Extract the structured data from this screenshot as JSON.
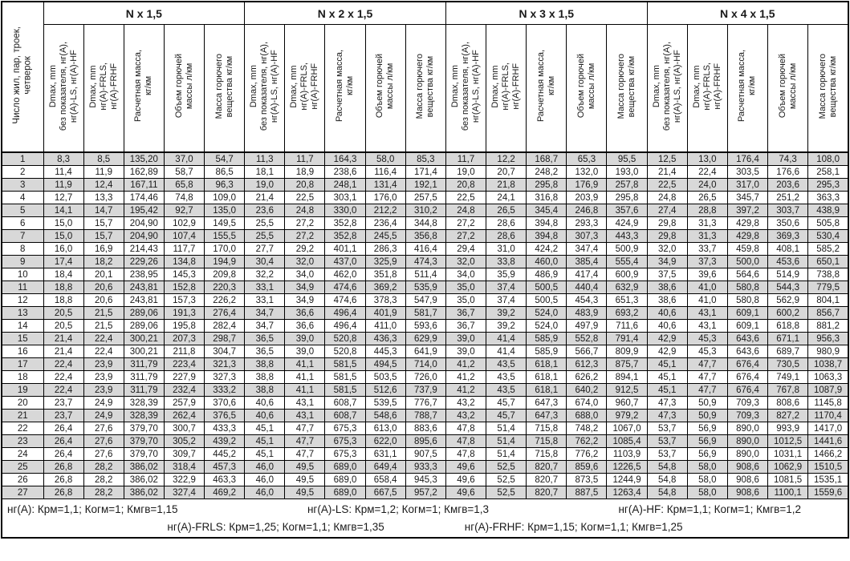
{
  "table": {
    "first_column_header": "Число жил, пар, троек,\nчетверок",
    "groups": [
      "N x 1,5",
      "N x 2 x 1,5",
      "N x 3 x 1,5",
      "N x 4 x 1,5"
    ],
    "sub_headers": [
      "Dmax, mm\nбез показателя, нг(A),\nнг(A)-LS, нг(A)-HF",
      "Dmax, mm\nнг(A)-FRLS,\nнг(A)-FRHF",
      "Расчетная масса,\nкг/км",
      "Объем горючей\nмассы л/км",
      "Масса горючего\nвещества кг/км"
    ],
    "rows": [
      [
        "1",
        "8,3",
        "8,5",
        "135,20",
        "37,0",
        "54,7",
        "11,3",
        "11,7",
        "164,3",
        "58,0",
        "85,3",
        "11,7",
        "12,2",
        "168,7",
        "65,3",
        "95,5",
        "12,5",
        "13,0",
        "176,4",
        "74,3",
        "108,0"
      ],
      [
        "2",
        "11,4",
        "11,9",
        "162,89",
        "58,7",
        "86,5",
        "18,1",
        "18,9",
        "238,6",
        "116,4",
        "171,4",
        "19,0",
        "20,7",
        "248,2",
        "132,0",
        "193,0",
        "21,4",
        "22,4",
        "303,5",
        "176,6",
        "258,1"
      ],
      [
        "3",
        "11,9",
        "12,4",
        "167,11",
        "65,8",
        "96,3",
        "19,0",
        "20,8",
        "248,1",
        "131,4",
        "192,1",
        "20,8",
        "21,8",
        "295,8",
        "176,9",
        "257,8",
        "22,5",
        "24,0",
        "317,0",
        "203,6",
        "295,3"
      ],
      [
        "4",
        "12,7",
        "13,3",
        "174,46",
        "74,8",
        "109,0",
        "21,4",
        "22,5",
        "303,1",
        "176,0",
        "257,5",
        "22,5",
        "24,1",
        "316,8",
        "203,9",
        "295,8",
        "24,8",
        "26,5",
        "345,7",
        "251,2",
        "363,3"
      ],
      [
        "5",
        "14,1",
        "14,7",
        "195,42",
        "92,7",
        "135,0",
        "23,6",
        "24,8",
        "330,0",
        "212,2",
        "310,2",
        "24,8",
        "26,5",
        "345,4",
        "246,8",
        "357,6",
        "27,4",
        "28,8",
        "397,2",
        "303,7",
        "438,9"
      ],
      [
        "6",
        "15,0",
        "15,7",
        "204,90",
        "102,9",
        "149,5",
        "25,5",
        "27,2",
        "352,8",
        "236,4",
        "344,8",
        "27,2",
        "28,6",
        "394,8",
        "293,3",
        "424,9",
        "29,8",
        "31,3",
        "429,8",
        "350,6",
        "505,8"
      ],
      [
        "7",
        "15,0",
        "15,7",
        "204,90",
        "107,4",
        "155,5",
        "25,5",
        "27,2",
        "352,8",
        "245,5",
        "356,8",
        "27,2",
        "28,6",
        "394,8",
        "307,3",
        "443,3",
        "29,8",
        "31,3",
        "429,8",
        "369,3",
        "530,4"
      ],
      [
        "8",
        "16,0",
        "16,9",
        "214,43",
        "117,7",
        "170,0",
        "27,7",
        "29,2",
        "401,1",
        "286,3",
        "416,4",
        "29,4",
        "31,0",
        "424,2",
        "347,4",
        "500,9",
        "32,0",
        "33,7",
        "459,8",
        "408,1",
        "585,2"
      ],
      [
        "9",
        "17,4",
        "18,2",
        "229,26",
        "134,8",
        "194,9",
        "30,4",
        "32,0",
        "437,0",
        "325,9",
        "474,3",
        "32,0",
        "33,8",
        "460,0",
        "385,4",
        "555,4",
        "34,9",
        "37,3",
        "500,0",
        "453,6",
        "650,1"
      ],
      [
        "10",
        "18,4",
        "20,1",
        "238,95",
        "145,3",
        "209,8",
        "32,2",
        "34,0",
        "462,0",
        "351,8",
        "511,4",
        "34,0",
        "35,9",
        "486,9",
        "417,4",
        "600,9",
        "37,5",
        "39,6",
        "564,6",
        "514,9",
        "738,8"
      ],
      [
        "11",
        "18,8",
        "20,6",
        "243,81",
        "152,8",
        "220,3",
        "33,1",
        "34,9",
        "474,6",
        "369,2",
        "535,9",
        "35,0",
        "37,4",
        "500,5",
        "440,4",
        "632,9",
        "38,6",
        "41,0",
        "580,8",
        "544,3",
        "779,5"
      ],
      [
        "12",
        "18,8",
        "20,6",
        "243,81",
        "157,3",
        "226,2",
        "33,1",
        "34,9",
        "474,6",
        "378,3",
        "547,9",
        "35,0",
        "37,4",
        "500,5",
        "454,3",
        "651,3",
        "38,6",
        "41,0",
        "580,8",
        "562,9",
        "804,1"
      ],
      [
        "13",
        "20,5",
        "21,5",
        "289,06",
        "191,3",
        "276,4",
        "34,7",
        "36,6",
        "496,4",
        "401,9",
        "581,7",
        "36,7",
        "39,2",
        "524,0",
        "483,9",
        "693,2",
        "40,6",
        "43,1",
        "609,1",
        "600,2",
        "856,7"
      ],
      [
        "14",
        "20,5",
        "21,5",
        "289,06",
        "195,8",
        "282,4",
        "34,7",
        "36,6",
        "496,4",
        "411,0",
        "593,6",
        "36,7",
        "39,2",
        "524,0",
        "497,9",
        "711,6",
        "40,6",
        "43,1",
        "609,1",
        "618,8",
        "881,2"
      ],
      [
        "15",
        "21,4",
        "22,4",
        "300,21",
        "207,3",
        "298,7",
        "36,5",
        "39,0",
        "520,8",
        "436,3",
        "629,9",
        "39,0",
        "41,4",
        "585,9",
        "552,8",
        "791,4",
        "42,9",
        "45,3",
        "643,6",
        "671,1",
        "956,3"
      ],
      [
        "16",
        "21,4",
        "22,4",
        "300,21",
        "211,8",
        "304,7",
        "36,5",
        "39,0",
        "520,8",
        "445,3",
        "641,9",
        "39,0",
        "41,4",
        "585,9",
        "566,7",
        "809,9",
        "42,9",
        "45,3",
        "643,6",
        "689,7",
        "980,9"
      ],
      [
        "17",
        "22,4",
        "23,9",
        "311,79",
        "223,4",
        "321,3",
        "38,8",
        "41,1",
        "581,5",
        "494,5",
        "714,0",
        "41,2",
        "43,5",
        "618,1",
        "612,3",
        "875,7",
        "45,1",
        "47,7",
        "676,4",
        "730,5",
        "1038,7"
      ],
      [
        "18",
        "22,4",
        "23,9",
        "311,79",
        "227,9",
        "327,3",
        "38,8",
        "41,1",
        "581,5",
        "503,5",
        "726,0",
        "41,2",
        "43,5",
        "618,1",
        "626,2",
        "894,1",
        "45,1",
        "47,7",
        "676,4",
        "749,1",
        "1063,3"
      ],
      [
        "19",
        "22,4",
        "23,9",
        "311,79",
        "232,4",
        "333,2",
        "38,8",
        "41,1",
        "581,5",
        "512,6",
        "737,9",
        "41,2",
        "43,5",
        "618,1",
        "640,2",
        "912,5",
        "45,1",
        "47,7",
        "676,4",
        "767,8",
        "1087,9"
      ],
      [
        "20",
        "23,7",
        "24,9",
        "328,39",
        "257,9",
        "370,6",
        "40,6",
        "43,1",
        "608,7",
        "539,5",
        "776,7",
        "43,2",
        "45,7",
        "647,3",
        "674,0",
        "960,7",
        "47,3",
        "50,9",
        "709,3",
        "808,6",
        "1145,8"
      ],
      [
        "21",
        "23,7",
        "24,9",
        "328,39",
        "262,4",
        "376,5",
        "40,6",
        "43,1",
        "608,7",
        "548,6",
        "788,7",
        "43,2",
        "45,7",
        "647,3",
        "688,0",
        "979,2",
        "47,3",
        "50,9",
        "709,3",
        "827,2",
        "1170,4"
      ],
      [
        "22",
        "26,4",
        "27,6",
        "379,70",
        "300,7",
        "433,3",
        "45,1",
        "47,7",
        "675,3",
        "613,0",
        "883,6",
        "47,8",
        "51,4",
        "715,8",
        "748,2",
        "1067,0",
        "53,7",
        "56,9",
        "890,0",
        "993,9",
        "1417,0"
      ],
      [
        "23",
        "26,4",
        "27,6",
        "379,70",
        "305,2",
        "439,2",
        "45,1",
        "47,7",
        "675,3",
        "622,0",
        "895,6",
        "47,8",
        "51,4",
        "715,8",
        "762,2",
        "1085,4",
        "53,7",
        "56,9",
        "890,0",
        "1012,5",
        "1441,6"
      ],
      [
        "24",
        "26,4",
        "27,6",
        "379,70",
        "309,7",
        "445,2",
        "45,1",
        "47,7",
        "675,3",
        "631,1",
        "907,5",
        "47,8",
        "51,4",
        "715,8",
        "776,2",
        "1103,9",
        "53,7",
        "56,9",
        "890,0",
        "1031,1",
        "1466,2"
      ],
      [
        "25",
        "26,8",
        "28,2",
        "386,02",
        "318,4",
        "457,3",
        "46,0",
        "49,5",
        "689,0",
        "649,4",
        "933,3",
        "49,6",
        "52,5",
        "820,7",
        "859,6",
        "1226,5",
        "54,8",
        "58,0",
        "908,6",
        "1062,9",
        "1510,5"
      ],
      [
        "26",
        "26,8",
        "28,2",
        "386,02",
        "322,9",
        "463,3",
        "46,0",
        "49,5",
        "689,0",
        "658,4",
        "945,3",
        "49,6",
        "52,5",
        "820,7",
        "873,5",
        "1244,9",
        "54,8",
        "58,0",
        "908,6",
        "1081,5",
        "1535,1"
      ],
      [
        "27",
        "26,8",
        "28,2",
        "386,02",
        "327,4",
        "469,2",
        "46,0",
        "49,5",
        "689,0",
        "667,5",
        "957,2",
        "49,6",
        "52,5",
        "820,7",
        "887,5",
        "1263,4",
        "54,8",
        "58,0",
        "908,6",
        "1100,1",
        "1559,6"
      ]
    ]
  },
  "footnotes": {
    "line1": [
      "нг(A): Крм=1,1;  Когм=1;  Кмгв=1,15",
      "нг(A)-LS: Крм=1,2;  Когм=1;  Кмгв=1,3",
      "нг(A)-HF: Крм=1,1;  Когм=1;  Кмгв=1,2"
    ],
    "line2": [
      "нг(A)-FRLS: Крм=1,25;  Когм=1,1;  Кмгв=1,35",
      "нг(A)-FRHF: Крм=1,15;  Когм=1,1;  Кмгв=1,25"
    ]
  },
  "colors": {
    "shaded_row": "#d8d8d8",
    "border": "#000000",
    "background": "#ffffff"
  }
}
